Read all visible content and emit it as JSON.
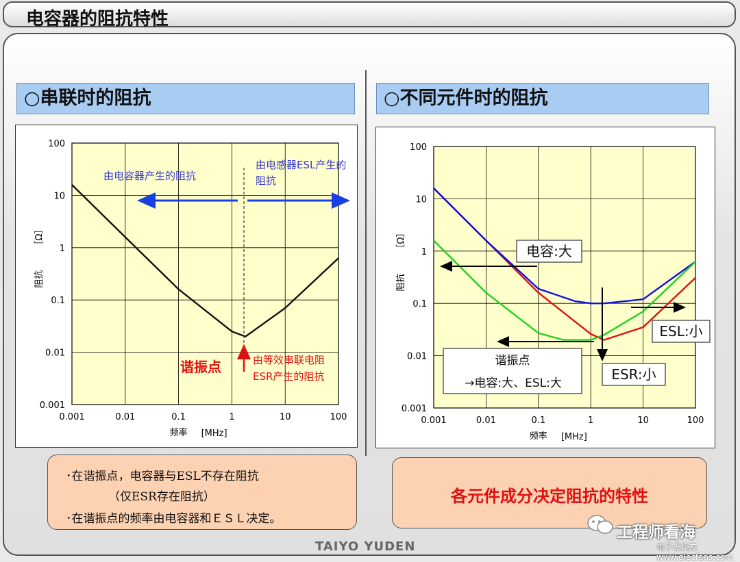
{
  "page_title": "电容器的阻抗特性",
  "left": {
    "heading": "○串联时的阻抗",
    "ylabel": "阻抗",
    "yunit": "［Ω］",
    "xlabel": "频率",
    "xunit": "[MHz]",
    "yticks": [
      "100",
      "10",
      "1",
      "0.1",
      "0.01",
      "0.001"
    ],
    "xticks": [
      "0.001",
      "0.01",
      "0.1",
      "1",
      "10",
      "100"
    ],
    "ann_cap": "由电容器产生的阻抗",
    "ann_esl_1": "由电感器ESL产生的",
    "ann_esl_2": "阻抗",
    "ann_resonance": "谐振点",
    "ann_esr_1": "由等效串联电阻",
    "ann_esr_2": "ESR产生的阻抗"
  },
  "right": {
    "heading": "○不同元件时的阻抗",
    "ylabel": "阻抗",
    "yunit": "［Ω］",
    "xlabel": "频率",
    "xunit": "[MHz]",
    "yticks": [
      "100",
      "10",
      "1",
      "0.1",
      "0.01",
      "0.001"
    ],
    "xticks": [
      "0.001",
      "0.01",
      "0.1",
      "1",
      "10",
      "100"
    ],
    "box_cap": "电容:大",
    "box_esl": "ESL:小",
    "box_esr": "ESR:小",
    "box_res_1": "谐振点",
    "box_res_2": "→电容:大、ESL:大"
  },
  "note_left": {
    "line1": "･在谐振点，电容器与ESL不存在阻抗",
    "line2": "（仅ESR存在阻抗）",
    "line3": "･在谐振点的频率由电容器和ＥＳＬ决定。"
  },
  "note_right": "各元件成分决定阻抗的特性",
  "brand": "TAIYO YUDEN",
  "watermark": "工程师看海",
  "watermark_site": "电子发烧友 www.elecfans.com",
  "colors": {
    "plot_bg": "#ffffcc",
    "blue_arrow": "#1a3fe0",
    "red": "#e01010",
    "green": "#20d020",
    "blue": "#1010e0"
  },
  "chart_data": [
    {
      "type": "line",
      "title": "",
      "xlabel": "频率 [MHz]",
      "ylabel": "阻抗 [Ω]",
      "xscale": "log",
      "yscale": "log",
      "xlim": [
        0.001,
        100
      ],
      "ylim": [
        0.001,
        100
      ],
      "series": [
        {
          "x": [
            0.001,
            0.01,
            0.1,
            1,
            1.8,
            10,
            100
          ],
          "y": [
            15.9,
            1.59,
            0.16,
            0.025,
            0.02,
            0.07,
            0.63
          ]
        }
      ]
    },
    {
      "type": "line",
      "title": "",
      "xlabel": "频率 [MHz]",
      "ylabel": "阻抗 [Ω]",
      "xscale": "log",
      "yscale": "log",
      "xlim": [
        0.001,
        100
      ],
      "ylim": [
        0.001,
        100
      ],
      "series": [
        {
          "color": "#e01010",
          "x": [
            0.001,
            0.01,
            0.1,
            1,
            1.8,
            10,
            100
          ],
          "y": [
            15.9,
            1.59,
            0.16,
            0.026,
            0.02,
            0.035,
            0.31
          ]
        },
        {
          "color": "#1010e0",
          "x": [
            0.001,
            0.01,
            0.1,
            0.5,
            1,
            1.8,
            10,
            100
          ],
          "y": [
            15.9,
            1.59,
            0.19,
            0.11,
            0.1,
            0.1,
            0.12,
            0.63
          ]
        },
        {
          "color": "#20d020",
          "x": [
            0.001,
            0.01,
            0.1,
            0.3,
            1,
            1.8,
            10,
            100
          ],
          "y": [
            1.59,
            0.16,
            0.027,
            0.02,
            0.02,
            0.025,
            0.07,
            0.63
          ]
        }
      ]
    }
  ]
}
